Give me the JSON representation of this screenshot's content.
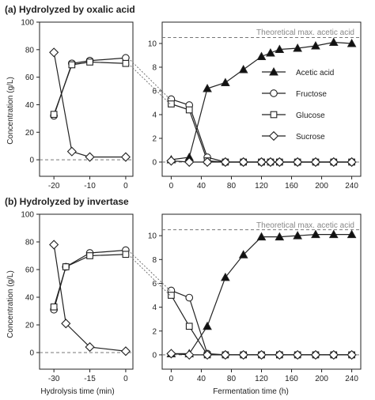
{
  "figure": {
    "axis_label_concentration": "Concentration (g/L)",
    "axis_label_hydrolysis_time": "Hydrolysis time (min)",
    "axis_label_fermentation_time": "Fermentation time (h)",
    "theoretical_label": "Theoretical max. acetic acid"
  },
  "colors": {
    "axis": "#222222",
    "dashed": "#777777",
    "marker_fill": "#ffffff",
    "triangle_fill": "#111111"
  },
  "chart_data": [
    {
      "type": "line",
      "panel": "a",
      "title": "(a) Hydrolyzed by oxalic acid",
      "legend": [
        "Acetic acid",
        "Fructose",
        "Glucose",
        "Sucrose"
      ],
      "legend_position": "right",
      "hydrolysis": {
        "xlim": [
          -24,
          2
        ],
        "ylim": [
          -12,
          100
        ],
        "xticks": [
          -20,
          -10,
          0
        ],
        "yticks": [
          0,
          20,
          40,
          60,
          80,
          100
        ],
        "x": [
          -20,
          -15,
          -10,
          0
        ],
        "series": [
          {
            "name": "Fructose",
            "marker": "circle",
            "values": [
              32,
              70,
              72,
              74
            ]
          },
          {
            "name": "Glucose",
            "marker": "square",
            "values": [
              33,
              69,
              71,
              70
            ]
          },
          {
            "name": "Sucrose",
            "marker": "diamond",
            "values": [
              78,
              6,
              2,
              2
            ]
          }
        ]
      },
      "fermentation": {
        "xlim": [
          -12,
          252
        ],
        "ylim": [
          -1.2,
          11.8
        ],
        "xticks": [
          0,
          40,
          80,
          120,
          160,
          200,
          240
        ],
        "yticks": [
          0,
          2,
          4,
          6,
          8,
          10
        ],
        "x": [
          0,
          24,
          48,
          72,
          96,
          120,
          132,
          144,
          168,
          192,
          216,
          240
        ],
        "theoretical_max": 10.5,
        "series": [
          {
            "name": "Acetic acid",
            "marker": "triangle",
            "values": [
              0.2,
              0.4,
              6.2,
              6.7,
              7.8,
              8.9,
              9.2,
              9.5,
              9.6,
              9.8,
              10.1,
              10.0
            ]
          },
          {
            "name": "Fructose",
            "marker": "circle",
            "values": [
              5.3,
              4.8,
              0.4,
              0,
              0,
              0,
              0,
              0,
              0,
              0,
              0,
              0
            ]
          },
          {
            "name": "Glucose",
            "marker": "square",
            "values": [
              4.9,
              4.4,
              0.1,
              0,
              0,
              0,
              0,
              0,
              0,
              0,
              0,
              0
            ]
          },
          {
            "name": "Sucrose",
            "marker": "diamond",
            "values": [
              0.1,
              0,
              0,
              0,
              0,
              0,
              0,
              0,
              0,
              0,
              0,
              0
            ]
          }
        ]
      }
    },
    {
      "type": "line",
      "panel": "b",
      "title": "(b) Hydrolyzed by invertase",
      "hydrolysis": {
        "xlim": [
          -36,
          3
        ],
        "ylim": [
          -12,
          100
        ],
        "xticks": [
          -30,
          -15,
          0
        ],
        "yticks": [
          0,
          20,
          40,
          60,
          80,
          100
        ],
        "x": [
          -30,
          -25,
          -15,
          0
        ],
        "series": [
          {
            "name": "Fructose",
            "marker": "circle",
            "values": [
              31,
              62,
              72,
              74
            ]
          },
          {
            "name": "Glucose",
            "marker": "square",
            "values": [
              33,
              62,
              70,
              71
            ]
          },
          {
            "name": "Sucrose",
            "marker": "diamond",
            "values": [
              78,
              21,
              4,
              1
            ]
          }
        ]
      },
      "fermentation": {
        "xlim": [
          -12,
          252
        ],
        "ylim": [
          -1.2,
          11.8
        ],
        "xticks": [
          0,
          40,
          80,
          120,
          160,
          200,
          240
        ],
        "yticks": [
          0,
          2,
          4,
          6,
          8,
          10
        ],
        "x": [
          0,
          24,
          48,
          72,
          96,
          120,
          144,
          168,
          192,
          216,
          240
        ],
        "theoretical_max": 10.5,
        "series": [
          {
            "name": "Acetic acid",
            "marker": "triangle",
            "values": [
              0.1,
              0.1,
              2.4,
              6.5,
              8.4,
              9.9,
              9.9,
              10.0,
              10.1,
              10.1,
              10.1
            ]
          },
          {
            "name": "Fructose",
            "marker": "circle",
            "values": [
              5.4,
              4.8,
              0.1,
              0,
              0,
              0,
              0,
              0,
              0,
              0,
              0
            ]
          },
          {
            "name": "Glucose",
            "marker": "square",
            "values": [
              5.0,
              2.4,
              0,
              0,
              0,
              0,
              0,
              0,
              0,
              0,
              0
            ]
          },
          {
            "name": "Sucrose",
            "marker": "diamond",
            "values": [
              0.1,
              0,
              0,
              0,
              0,
              0,
              0,
              0,
              0,
              0,
              0
            ]
          }
        ]
      }
    }
  ]
}
